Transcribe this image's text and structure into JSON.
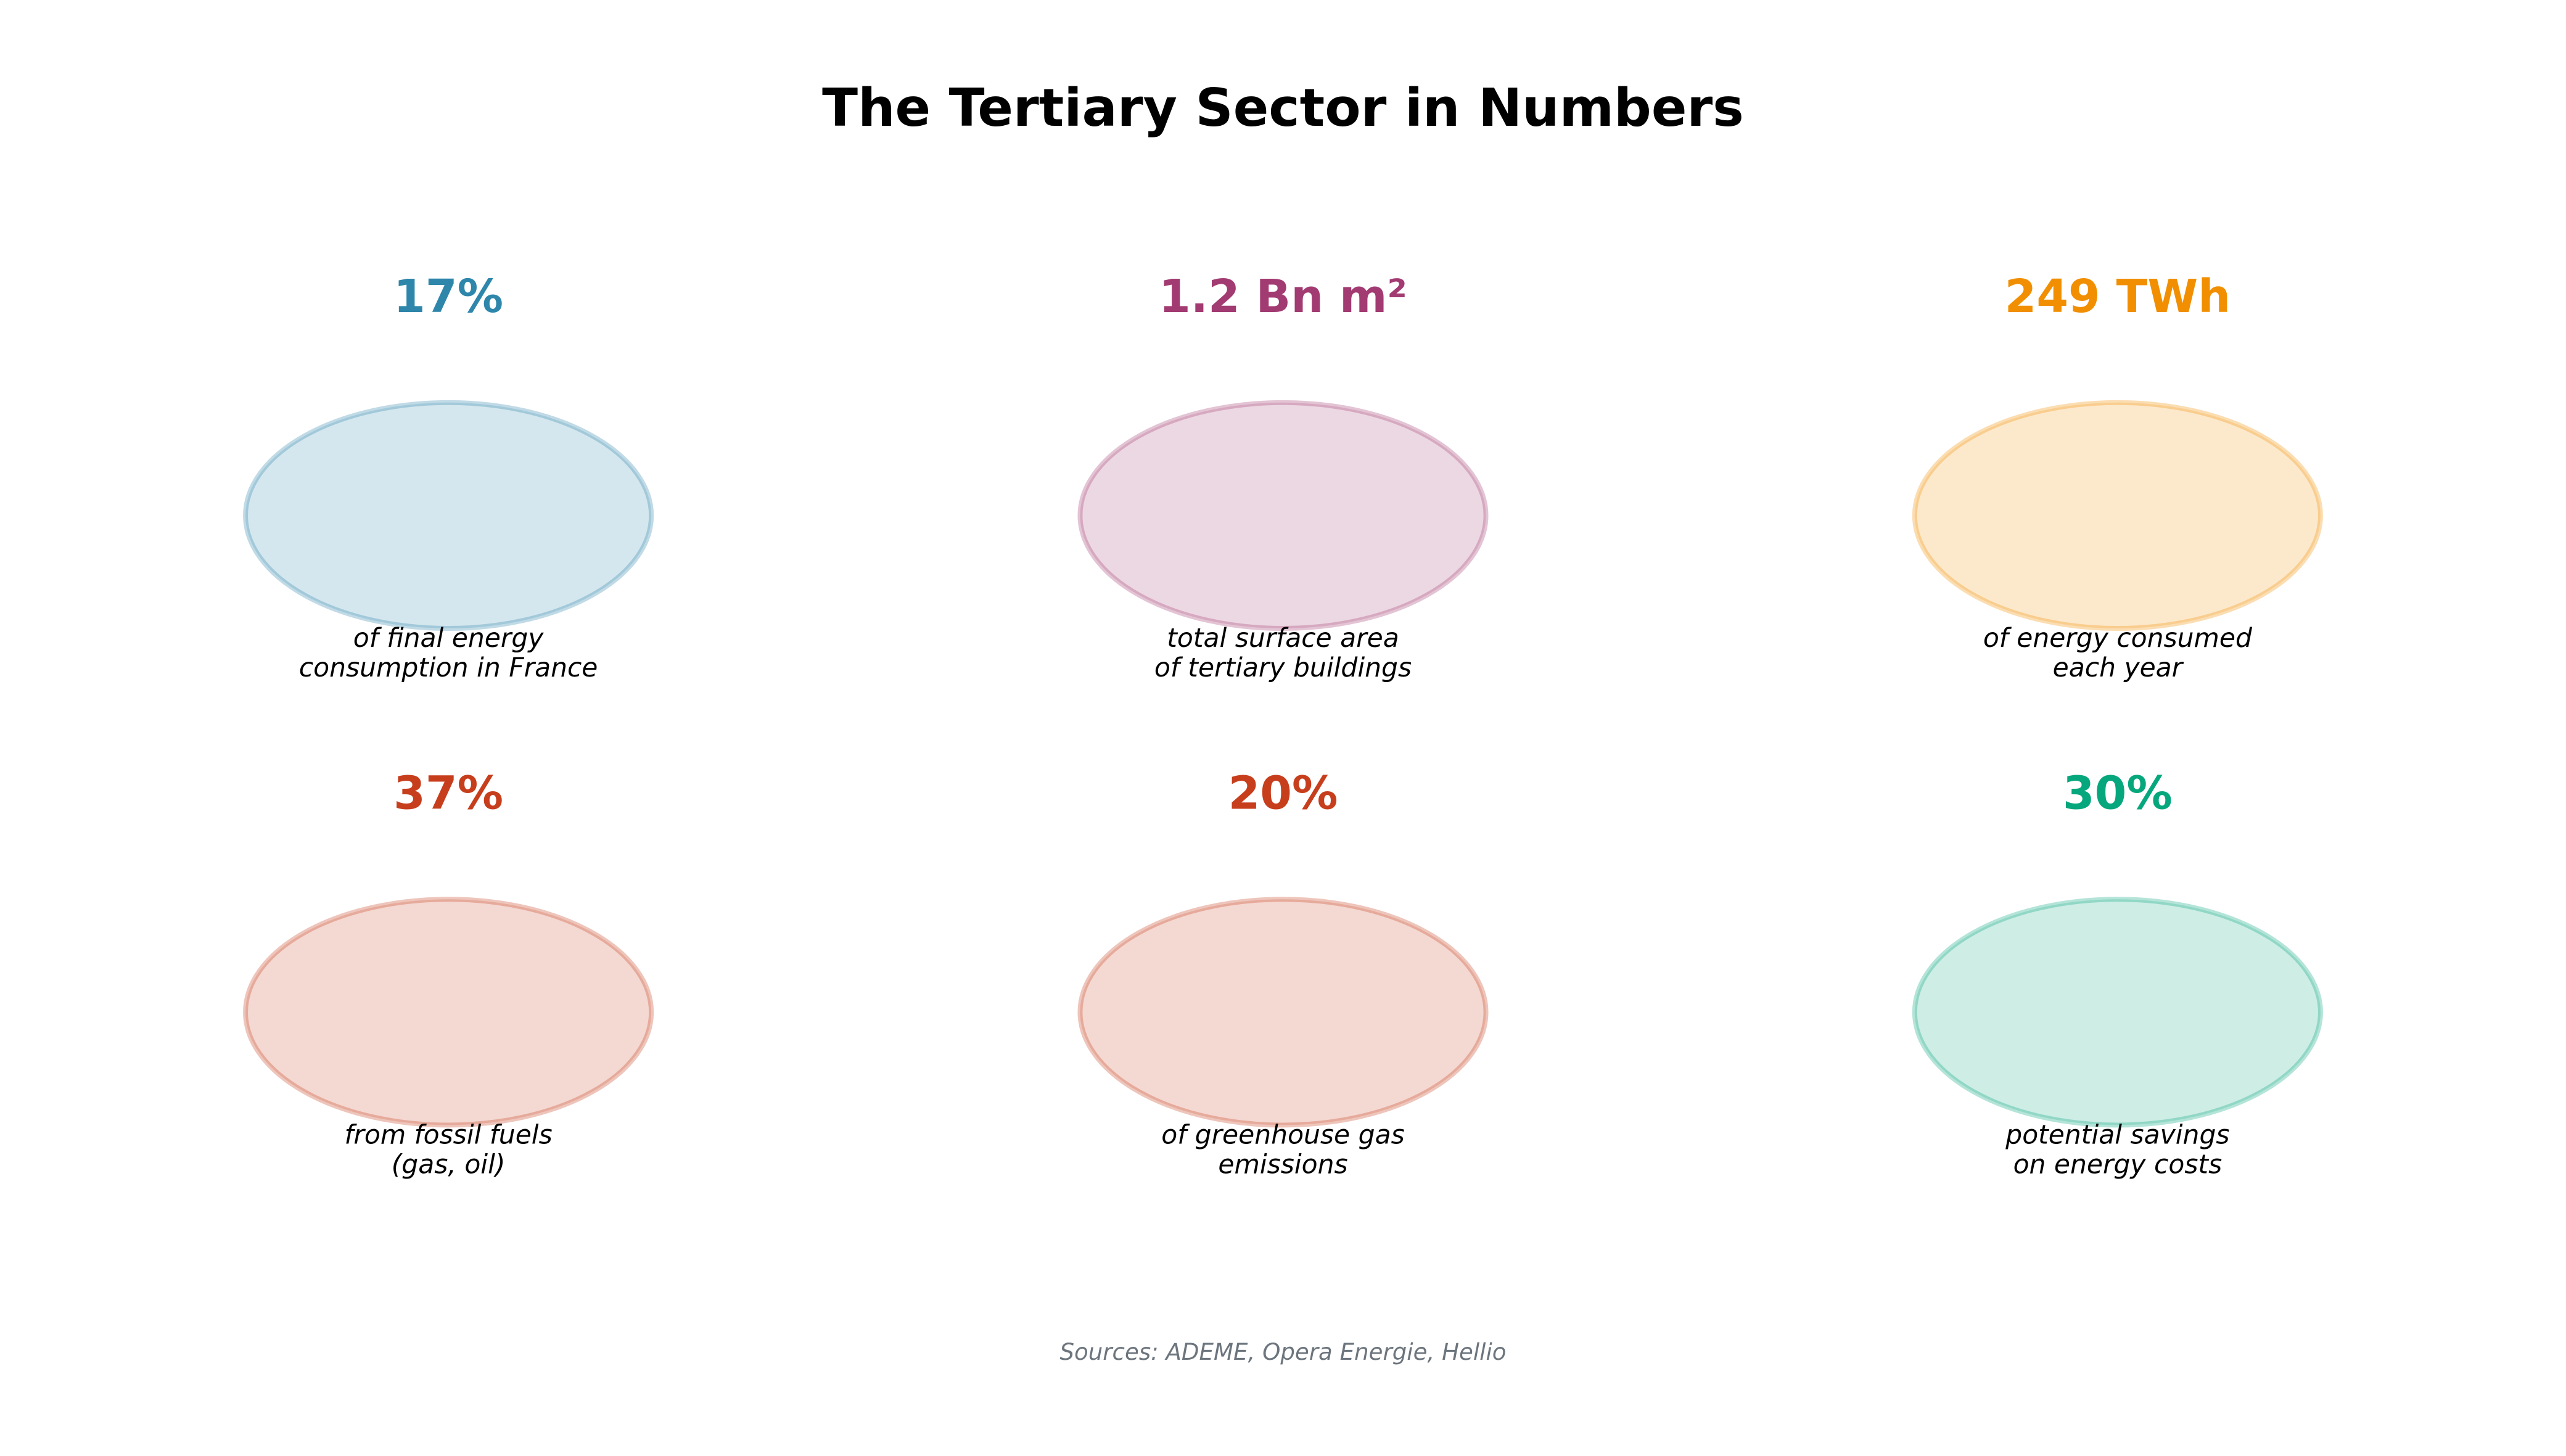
{
  "title": "The Tertiary Sector in Numbers",
  "stats": [
    {
      "value": "17%",
      "lines": [
        "of final energy",
        "consumption in France"
      ],
      "color": "#2e86ab"
    },
    {
      "value": "1.2 Bn m²",
      "lines": [
        "total surface area",
        "of tertiary buildings"
      ],
      "color": "#a23b72"
    },
    {
      "value": "249 TWh",
      "lines": [
        "of energy consumed",
        "each year"
      ],
      "color": "#f18f01"
    },
    {
      "value": "37%",
      "lines": [
        "from fossil fuels",
        "(gas, oil)"
      ],
      "color": "#c73e1d"
    },
    {
      "value": "20%",
      "lines": [
        "of greenhouse gas",
        "emissions"
      ],
      "color": "#c73e1d"
    },
    {
      "value": "30%",
      "lines": [
        "potential savings",
        "on energy costs"
      ],
      "color": "#06a77d"
    }
  ],
  "source": "Sources: ADEME, Opera Energie, Hellio"
}
